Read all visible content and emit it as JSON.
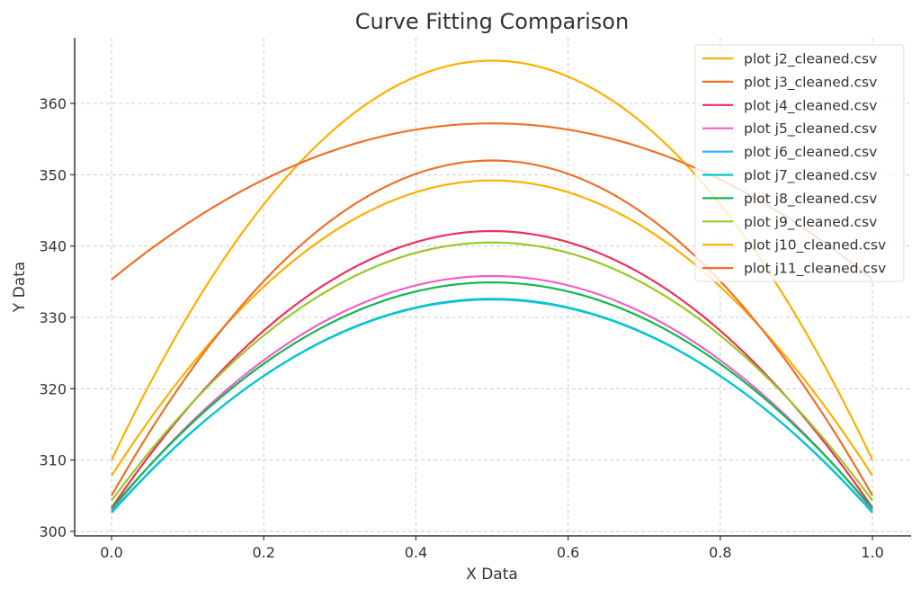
{
  "chart_data": {
    "type": "line",
    "title": "Curve Fitting Comparison",
    "xlabel": "X Data",
    "ylabel": "Y Data",
    "xlim": [
      -0.0485,
      1.0508
    ],
    "ylim": [
      299.37,
      369.2
    ],
    "xticks": [
      "0.0",
      "0.2",
      "0.4",
      "0.6",
      "0.8",
      "1.0"
    ],
    "xtick_values": [
      0,
      0.2,
      0.4,
      0.6,
      0.8,
      1.0
    ],
    "yticks": [
      "300",
      "310",
      "320",
      "330",
      "340",
      "350",
      "360"
    ],
    "ytick_values": [
      300,
      310,
      320,
      330,
      340,
      350,
      360
    ],
    "grid": true,
    "legend_position": "top-right",
    "x": [
      0,
      0.1,
      0.2,
      0.3,
      0.4,
      0.5,
      0.6,
      0.7,
      0.8,
      0.9,
      1.0
    ],
    "series": [
      {
        "name": "plot j2_cleaned.csv",
        "color": "#FFB000",
        "values": [
          310.0,
          330.2,
          345.8,
          357.0,
          363.8,
          366.0,
          363.8,
          357.0,
          345.8,
          330.2,
          310.0
        ]
      },
      {
        "name": "plot j3_cleaned.csv",
        "color": "#F07028",
        "values": [
          335.3,
          343.2,
          349.3,
          353.7,
          356.3,
          357.2,
          356.3,
          353.7,
          349.3,
          343.2,
          335.3
        ]
      },
      {
        "name": "plot j4_cleaned.csv",
        "color": "#F0305A",
        "values": [
          303.3,
          317.3,
          328.1,
          335.9,
          340.5,
          342.1,
          340.5,
          335.9,
          328.1,
          317.3,
          303.3
        ]
      },
      {
        "name": "plot j5_cleaned.csv",
        "color": "#F060C8",
        "values": [
          303.0,
          314.8,
          324.0,
          330.6,
          334.5,
          335.8,
          334.5,
          330.6,
          324.0,
          314.8,
          303.0
        ]
      },
      {
        "name": "plot j6_cleaned.csv",
        "color": "#30B8F8",
        "values": [
          302.7,
          313.4,
          321.8,
          327.7,
          331.3,
          332.5,
          331.3,
          327.7,
          321.8,
          313.4,
          302.7
        ]
      },
      {
        "name": "plot j7_cleaned.csv",
        "color": "#00C8C8",
        "values": [
          302.6,
          313.4,
          321.8,
          327.8,
          331.4,
          332.6,
          331.4,
          327.8,
          321.8,
          313.4,
          302.6
        ]
      },
      {
        "name": "plot j8_cleaned.csv",
        "color": "#10B850",
        "values": [
          303.2,
          314.6,
          323.5,
          329.8,
          333.6,
          334.9,
          333.6,
          329.8,
          323.5,
          314.6,
          303.2
        ]
      },
      {
        "name": "plot j9_cleaned.csv",
        "color": "#98C828",
        "values": [
          304.3,
          317.3,
          327.5,
          334.7,
          339.1,
          340.5,
          339.1,
          334.7,
          327.5,
          317.3,
          304.3
        ]
      },
      {
        "name": "plot j10_cleaned.csv",
        "color": "#FFB000",
        "values": [
          307.8,
          322.7,
          334.3,
          342.6,
          347.5,
          349.2,
          347.5,
          342.6,
          334.3,
          322.7,
          307.8
        ]
      },
      {
        "name": "plot j11_cleaned.csv",
        "color": "#F07028",
        "values": [
          305.0,
          321.9,
          335.1,
          344.5,
          350.1,
          352.0,
          350.1,
          344.5,
          335.1,
          321.9,
          305.0
        ]
      }
    ]
  }
}
